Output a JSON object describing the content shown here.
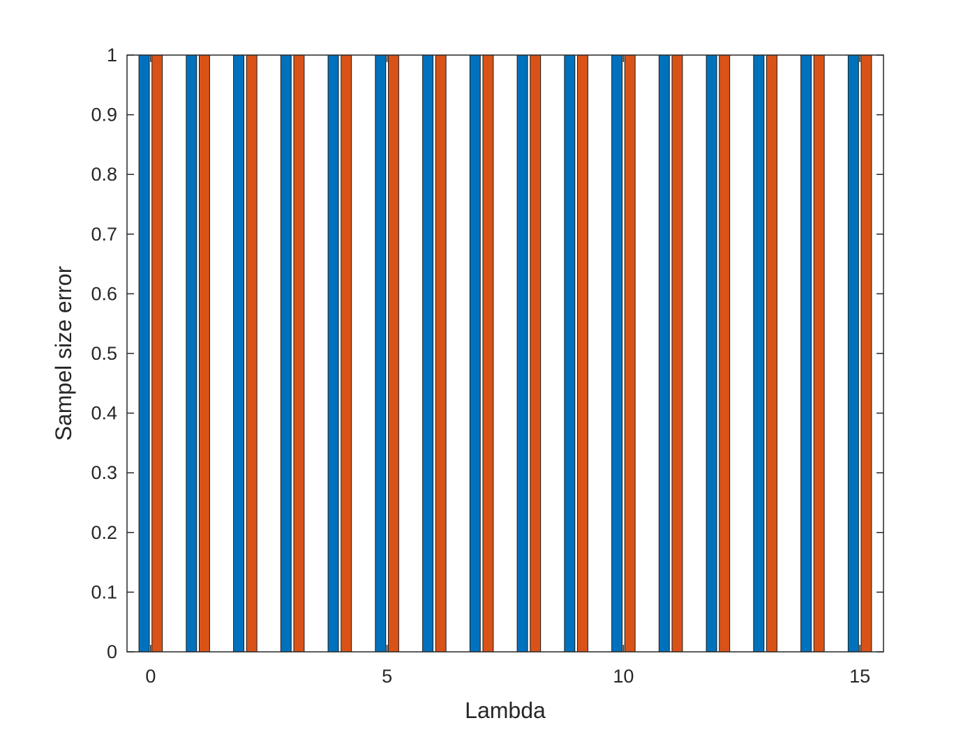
{
  "chart_data": {
    "type": "bar",
    "title": "",
    "xlabel": "Lambda",
    "ylabel": "Sampel size error",
    "x": [
      0,
      1,
      2,
      3,
      4,
      5,
      6,
      7,
      8,
      9,
      10,
      11,
      12,
      13,
      14,
      15
    ],
    "xlim": [
      -0.5,
      15.5
    ],
    "ylim": [
      0,
      1
    ],
    "xticks": [
      0,
      5,
      10,
      15
    ],
    "yticks": [
      0,
      0.1,
      0.2,
      0.3,
      0.4,
      0.5,
      0.6,
      0.7,
      0.8,
      0.9,
      1
    ],
    "ytick_labels": [
      "0",
      "0.1",
      "0.2",
      "0.3",
      "0.4",
      "0.5",
      "0.6",
      "0.7",
      "0.8",
      "0.9",
      "1"
    ],
    "xtick_labels": [
      "0",
      "5",
      "10",
      "15"
    ],
    "grid": false,
    "legend": "none",
    "series": [
      {
        "color": "#0072BD",
        "values": [
          1,
          1,
          1,
          1,
          1,
          1,
          1,
          1,
          1,
          1,
          1,
          1,
          1,
          1,
          1,
          1
        ]
      },
      {
        "color": "#D95319",
        "values": [
          1,
          1,
          1,
          1,
          1,
          1,
          1,
          1,
          1,
          1,
          1,
          1,
          1,
          1,
          1,
          1
        ]
      }
    ]
  }
}
